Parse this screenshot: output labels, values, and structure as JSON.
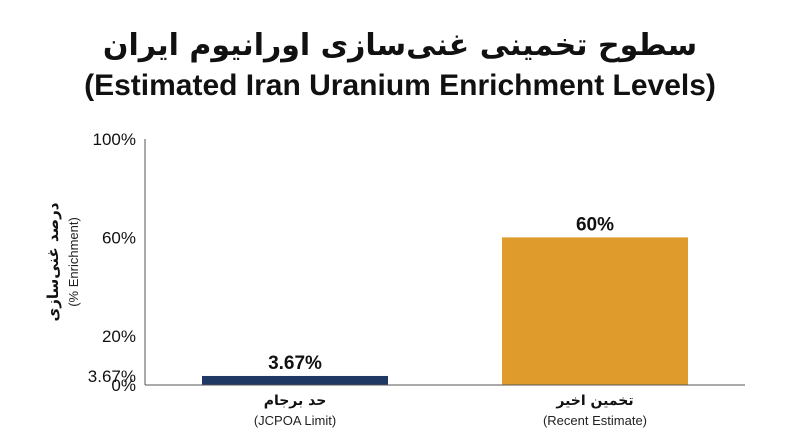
{
  "chart_data": {
    "type": "bar",
    "title_fa": "سطوح تخمینی غنی‌سازی اورانیوم ایران",
    "title_en": "(Estimated Iran Uranium Enrichment Levels)",
    "ylabel_fa": "درصد غنی‌سازی",
    "ylabel_en": "(% Enrichment)",
    "xlabel": "",
    "ylim": [
      0,
      100
    ],
    "yticks": [
      0,
      3.67,
      20,
      60,
      100
    ],
    "ytick_labels": [
      "0%",
      "3.67%",
      "20%",
      "60%",
      "100%"
    ],
    "grid": false,
    "categories": [
      {
        "fa": "حد برجام",
        "en": "(JCPOA Limit)"
      },
      {
        "fa": "تخمین اخیر",
        "en": "(Recent Estimate)"
      }
    ],
    "values": [
      3.67,
      60
    ],
    "value_labels": [
      "3.67%",
      "60%"
    ],
    "colors": [
      "#1f3864",
      "#e09b2d"
    ]
  }
}
